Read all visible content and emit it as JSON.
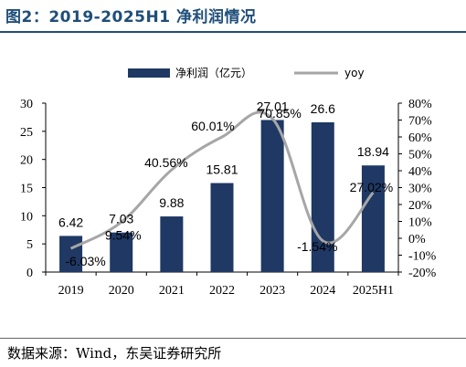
{
  "title": "图2：2019-2025H1 净利润情况",
  "source": "数据来源：Wind，东吴证券研究所",
  "chart_data": {
    "type": "bar",
    "categories": [
      "2019",
      "2020",
      "2021",
      "2022",
      "2023",
      "2024",
      "2025H1"
    ],
    "series": [
      {
        "name": "净利润（亿元）",
        "type": "bar",
        "axis": "left",
        "color": "#1f3864",
        "values": [
          6.42,
          7.03,
          9.88,
          15.81,
          27.01,
          26.6,
          18.94
        ],
        "labels": [
          "6.42",
          "7.03",
          "9.88",
          "15.81",
          "27.01",
          "26.6",
          "18.94"
        ]
      },
      {
        "name": "yoy",
        "type": "line",
        "axis": "right",
        "color": "#a6a6a6",
        "values": [
          -6.03,
          9.54,
          40.56,
          60.01,
          70.85,
          -1.54,
          27.02
        ],
        "labels": [
          "-6.03%",
          "9.54%",
          "40.56%",
          "60.01%",
          "70.85%",
          "-1.54%",
          "27.02%"
        ]
      }
    ],
    "y_left": {
      "ticks": [
        0,
        5,
        10,
        15,
        20,
        25,
        30
      ],
      "tick_labels": [
        "0",
        "5",
        "10",
        "15",
        "20",
        "25",
        "30"
      ],
      "ylim": [
        0,
        30
      ]
    },
    "y_right": {
      "ticks": [
        -20,
        -10,
        0,
        10,
        20,
        30,
        40,
        50,
        60,
        70,
        80
      ],
      "tick_labels": [
        "-20%",
        "-10%",
        "0%",
        "10%",
        "20%",
        "30%",
        "40%",
        "50%",
        "60%",
        "70%",
        "80%"
      ],
      "ylim": [
        -20,
        80
      ]
    },
    "legend": "top",
    "grid": false
  }
}
